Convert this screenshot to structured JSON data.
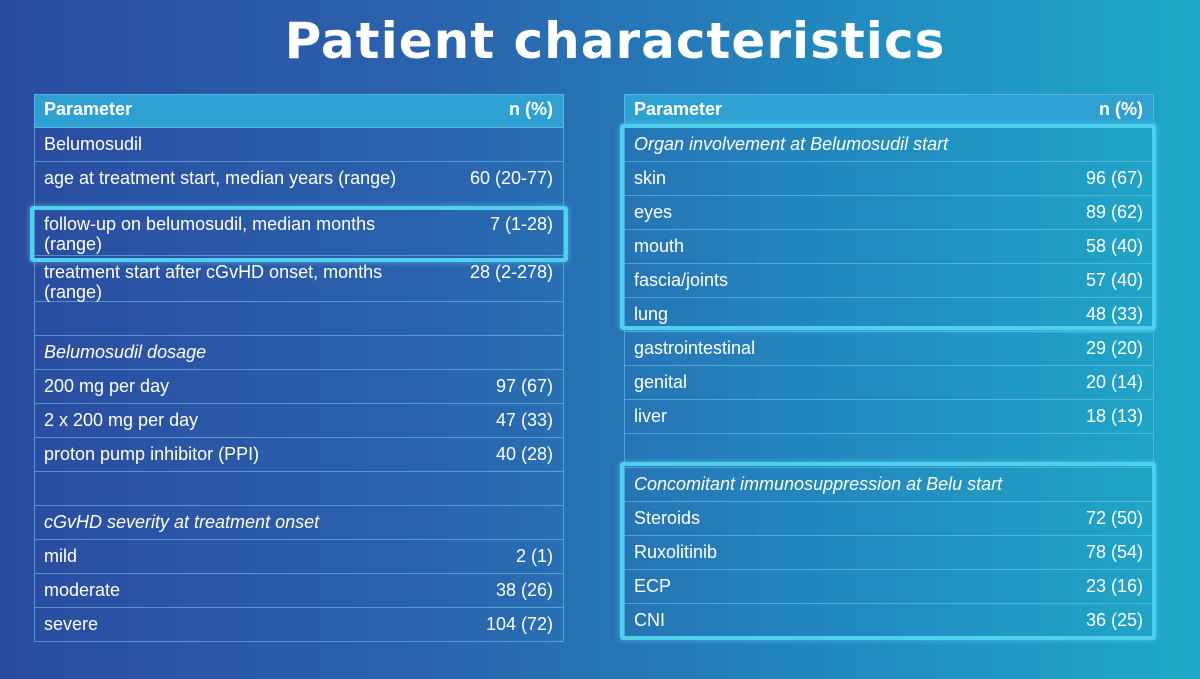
{
  "title": "Patient characteristics",
  "left": {
    "header": {
      "parameter": "Parameter",
      "n": "n (%)"
    },
    "rows": [
      {
        "parameter": "Belumosudil",
        "n": ""
      },
      {
        "parameter": "age at treatment start, median years (range)",
        "n": "60 (20-77)"
      },
      {
        "parameter": "follow-up on belumosudil, median months (range)",
        "n": "7 (1-28)"
      },
      {
        "parameter": "treatment start after cGvHD onset, months (range)",
        "n": "28 (2-278)"
      },
      {
        "parameter": "",
        "n": ""
      },
      {
        "parameter": "Belumosudil dosage",
        "n": ""
      },
      {
        "parameter": "200 mg per day",
        "n": "97 (67)"
      },
      {
        "parameter": "2 x 200 mg per day",
        "n": "47 (33)"
      },
      {
        "parameter": "proton pump inhibitor (PPI)",
        "n": "40 (28)"
      },
      {
        "parameter": "",
        "n": ""
      },
      {
        "parameter": "cGvHD severity at treatment onset",
        "n": ""
      },
      {
        "parameter": "mild",
        "n": "2 (1)"
      },
      {
        "parameter": "moderate",
        "n": "38 (26)"
      },
      {
        "parameter": "severe",
        "n": "104 (72)"
      }
    ]
  },
  "right": {
    "header": {
      "parameter": "Parameter",
      "n": "n (%)"
    },
    "rows": [
      {
        "parameter": "Organ involvement at Belumosudil start",
        "n": ""
      },
      {
        "parameter": "skin",
        "n": "96 (67)"
      },
      {
        "parameter": "eyes",
        "n": "89 (62)"
      },
      {
        "parameter": "mouth",
        "n": "58 (40)"
      },
      {
        "parameter": "fascia/joints",
        "n": "57 (40)"
      },
      {
        "parameter": "lung",
        "n": "48 (33)"
      },
      {
        "parameter": "gastrointestinal",
        "n": "29 (20)"
      },
      {
        "parameter": "genital",
        "n": "20 (14)"
      },
      {
        "parameter": "liver",
        "n": "18 (13)"
      },
      {
        "parameter": "",
        "n": ""
      },
      {
        "parameter": "Concomitant immunosuppression at Belu start",
        "n": ""
      },
      {
        "parameter": "Steroids",
        "n": "72 (50)"
      },
      {
        "parameter": "Ruxolitinib",
        "n": "78 (54)"
      },
      {
        "parameter": "ECP",
        "n": "23 (16)"
      },
      {
        "parameter": "CNI",
        "n": "36 (25)"
      }
    ]
  }
}
